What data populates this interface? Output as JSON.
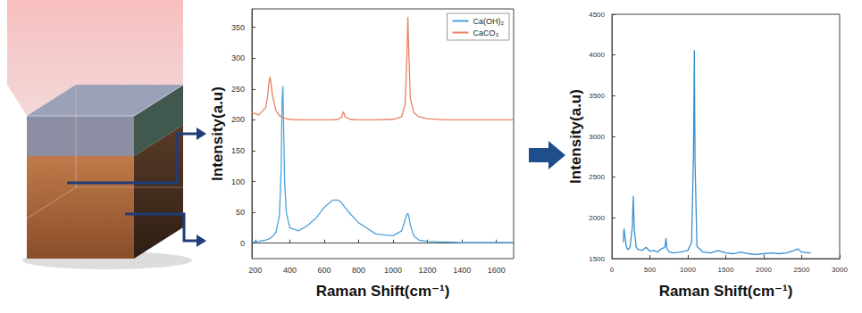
{
  "chart_data": [
    {
      "type": "line",
      "xlabel": "Raman Shift(cm⁻¹)",
      "ylabel": "Intensity(a.u)",
      "x": [
        180,
        220,
        260,
        270,
        280,
        285,
        290,
        300,
        320,
        340,
        350,
        355,
        360,
        365,
        370,
        380,
        400,
        450,
        500,
        550,
        600,
        650,
        680,
        700,
        705,
        710,
        715,
        720,
        750,
        800,
        900,
        1000,
        1050,
        1070,
        1080,
        1086,
        1090,
        1100,
        1120,
        1150,
        1200,
        1300,
        1400,
        1500,
        1600,
        1700
      ],
      "series": [
        {
          "name": "Ca(OH)₂",
          "color": "#4da3d8",
          "values": [
            2,
            3,
            5,
            6,
            7,
            8,
            9,
            11,
            18,
            45,
            120,
            230,
            255,
            180,
            100,
            50,
            25,
            20,
            28,
            40,
            58,
            70,
            70,
            66,
            64,
            62,
            60,
            58,
            48,
            33,
            15,
            12,
            20,
            38,
            47,
            48,
            45,
            30,
            12,
            5,
            3,
            2,
            1,
            1,
            1,
            1
          ]
        },
        {
          "name": "CaCO₃",
          "color": "#e8825f",
          "values": [
            212,
            208,
            220,
            235,
            262,
            270,
            262,
            238,
            215,
            207,
            205,
            204,
            204,
            203,
            203,
            202,
            201,
            200,
            200,
            200,
            200,
            200,
            201,
            204,
            208,
            213,
            211,
            205,
            201,
            200,
            200,
            201,
            205,
            225,
            300,
            367,
            320,
            235,
            212,
            205,
            202,
            200,
            200,
            200,
            200,
            200
          ]
        }
      ],
      "xlim": [
        180,
        1700
      ],
      "xticks": [
        200,
        400,
        600,
        800,
        1000,
        1200,
        1400,
        1600
      ],
      "ylim": [
        -25,
        380
      ],
      "yticks": [
        0,
        50,
        100,
        150,
        200,
        250,
        300,
        350
      ],
      "grid": false,
      "legend": "upper right"
    },
    {
      "type": "line",
      "xlabel": "Raman Shift(cm⁻¹)",
      "ylabel": "Intensity(a.u)",
      "color": "#3a8fd0",
      "x": [
        150,
        160,
        170,
        190,
        210,
        240,
        270,
        282,
        295,
        320,
        350,
        400,
        450,
        500,
        550,
        600,
        650,
        700,
        712,
        725,
        760,
        800,
        900,
        1000,
        1050,
        1075,
        1086,
        1095,
        1120,
        1200,
        1300,
        1400,
        1500,
        1600,
        1700,
        1800,
        1900,
        2000,
        2100,
        2200,
        2300,
        2400,
        2450,
        2500,
        2600,
        2620
      ],
      "values": [
        1700,
        1870,
        1780,
        1650,
        1610,
        1640,
        1900,
        2270,
        1850,
        1640,
        1610,
        1600,
        1640,
        1590,
        1600,
        1580,
        1620,
        1640,
        1750,
        1620,
        1580,
        1570,
        1580,
        1600,
        1700,
        2800,
        4060,
        2700,
        1650,
        1580,
        1570,
        1600,
        1570,
        1560,
        1580,
        1560,
        1550,
        1560,
        1570,
        1560,
        1570,
        1600,
        1620,
        1580,
        1570,
        1570
      ],
      "xlim": [
        0,
        3000
      ],
      "xticks": [
        0,
        500,
        1000,
        1500,
        2000,
        2500,
        3000
      ],
      "ylim": [
        1500,
        4500
      ],
      "yticks": [
        1500,
        2000,
        2500,
        3000,
        3500,
        4000,
        4500
      ],
      "grid": false
    }
  ]
}
